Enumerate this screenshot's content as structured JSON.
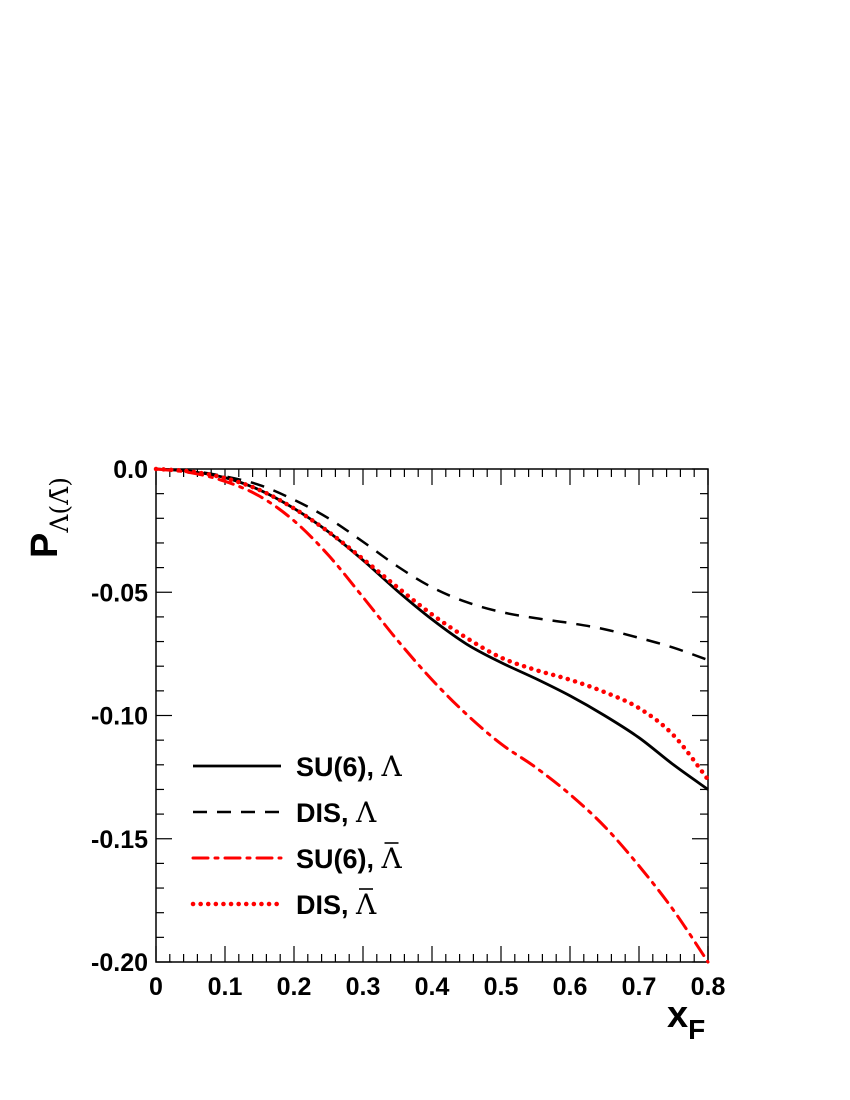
{
  "chart_data": {
    "type": "line",
    "title": "",
    "xlabel": "x",
    "xlabel_sub": "F",
    "ylabel": "P",
    "ylabel_sub": "Λ(Λ̄)",
    "xlim": [
      0,
      0.8
    ],
    "ylim": [
      -0.2,
      0.0
    ],
    "x_ticks": [
      0,
      0.1,
      0.2,
      0.3,
      0.4,
      0.5,
      0.6,
      0.7,
      0.8
    ],
    "x_tick_labels": [
      "0",
      "0.1",
      "0.2",
      "0.3",
      "0.4",
      "0.5",
      "0.6",
      "0.7",
      "0.8"
    ],
    "y_ticks": [
      0.0,
      -0.05,
      -0.1,
      -0.15,
      -0.2
    ],
    "y_tick_labels": [
      "0.0",
      "-0.05",
      "-0.10",
      "-0.15",
      "-0.20"
    ],
    "grid": false,
    "legend_position": "bottom-left",
    "x": [
      0,
      0.05,
      0.1,
      0.15,
      0.2,
      0.25,
      0.3,
      0.35,
      0.4,
      0.45,
      0.5,
      0.55,
      0.6,
      0.65,
      0.7,
      0.75,
      0.8
    ],
    "series": [
      {
        "name": "SU(6), Λ",
        "label_text": "SU(6), ",
        "label_symbol": "Λ",
        "label_bar": false,
        "color": "#000000",
        "style": "solid",
        "values": [
          0,
          -0.001,
          -0.0035,
          -0.0085,
          -0.016,
          -0.0255,
          -0.037,
          -0.0495,
          -0.061,
          -0.071,
          -0.0785,
          -0.085,
          -0.092,
          -0.1,
          -0.109,
          -0.12,
          -0.13
        ]
      },
      {
        "name": "DIS, Λ",
        "label_text": "DIS, ",
        "label_symbol": "Λ",
        "label_bar": false,
        "color": "#000000",
        "style": "dashed",
        "values": [
          0,
          -0.0008,
          -0.003,
          -0.0065,
          -0.0125,
          -0.02,
          -0.0295,
          -0.0395,
          -0.048,
          -0.054,
          -0.058,
          -0.0605,
          -0.0625,
          -0.065,
          -0.0685,
          -0.0725,
          -0.0775
        ]
      },
      {
        "name": "SU(6), Λ̄",
        "label_text": "SU(6), ",
        "label_symbol": "Λ",
        "label_bar": true,
        "color": "#ff0000",
        "style": "dashdot",
        "values": [
          0,
          -0.0015,
          -0.005,
          -0.011,
          -0.021,
          -0.035,
          -0.052,
          -0.0695,
          -0.0855,
          -0.0995,
          -0.1115,
          -0.121,
          -0.132,
          -0.145,
          -0.161,
          -0.179,
          -0.2
        ]
      },
      {
        "name": "DIS, Λ̄",
        "label_text": "DIS, ",
        "label_symbol": "Λ",
        "label_bar": true,
        "color": "#ff0000",
        "style": "dotted",
        "values": [
          0,
          -0.001,
          -0.0037,
          -0.0085,
          -0.016,
          -0.0255,
          -0.0365,
          -0.048,
          -0.059,
          -0.0685,
          -0.0765,
          -0.0815,
          -0.0855,
          -0.0905,
          -0.097,
          -0.108,
          -0.126
        ]
      }
    ]
  }
}
